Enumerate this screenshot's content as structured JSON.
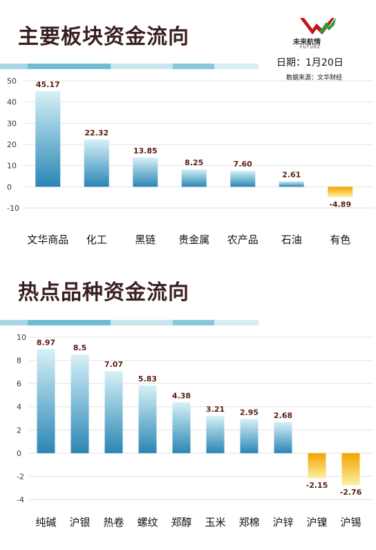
{
  "logo": {
    "brand": "未来航情",
    "sub": "FUTURE"
  },
  "header": {
    "title_main": "主要板块资金流向",
    "date_label": "日期：",
    "date_value": "1月20日",
    "source_label": "数据来源：",
    "source_value": "文华财经"
  },
  "colors": {
    "positive_top": "#d6f1f7",
    "positive_bottom": "#2a86b5",
    "negative_top": "#f5a300",
    "negative_bottom": "#fcefa0",
    "label": "#5a1e12",
    "title": "#3a2020",
    "stripe": "#5fb6cf"
  },
  "chart_data": [
    {
      "type": "bar",
      "title": "主要板块资金流向",
      "categories": [
        "文华商品",
        "化工",
        "黑链",
        "贵金属",
        "农产品",
        "石油",
        "有色"
      ],
      "values": [
        45.17,
        22.32,
        13.85,
        8.25,
        7.6,
        2.61,
        -4.89
      ],
      "value_labels": [
        "45.17",
        "22.32",
        "13.85",
        "8.25",
        "7.60",
        "2.61",
        "-4.89"
      ],
      "ylim": [
        -10,
        50
      ],
      "yticks": [
        "-10",
        "0",
        "10",
        "20",
        "30",
        "40",
        "50"
      ],
      "xlabel": "",
      "ylabel": "",
      "grid": true
    },
    {
      "type": "bar",
      "title": "热点品种资金流向",
      "categories": [
        "纯碱",
        "沪银",
        "热卷",
        "螺纹",
        "郑醇",
        "玉米",
        "郑棉",
        "沪锌",
        "沪镍",
        "沪锡"
      ],
      "values": [
        8.97,
        8.5,
        7.07,
        5.83,
        4.38,
        3.21,
        2.95,
        2.68,
        -2.15,
        -2.76
      ],
      "value_labels": [
        "8.97",
        "8.5",
        "7.07",
        "5.83",
        "4.38",
        "3.21",
        "2.95",
        "2.68",
        "-2.15",
        "-2.76"
      ],
      "ylim": [
        -4,
        10
      ],
      "yticks": [
        "-4",
        "-2",
        "0",
        "2",
        "4",
        "6",
        "8",
        "10"
      ],
      "xlabel": "",
      "ylabel": "",
      "grid": true
    }
  ]
}
